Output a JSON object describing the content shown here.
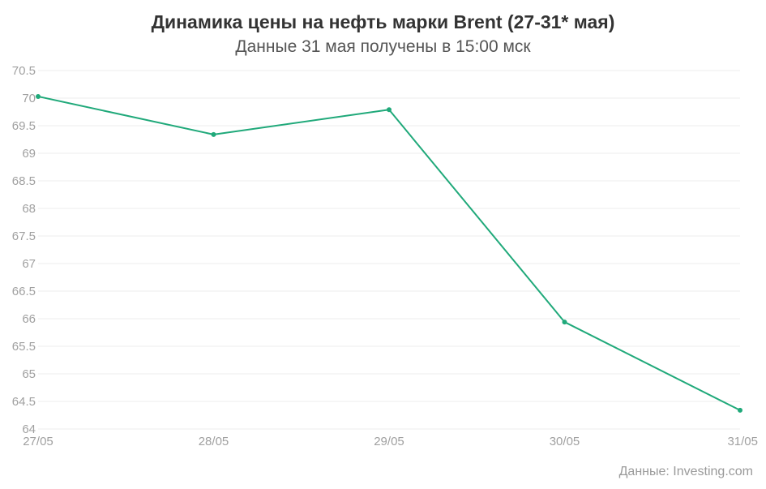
{
  "chart_data": {
    "type": "line",
    "title": "Динамика цены на нефть марки Brent (27-31* мая)",
    "subtitle": "Данные 31 мая получены в 15:00 мск",
    "categories": [
      "27/05",
      "28/05",
      "29/05",
      "30/05",
      "31/05"
    ],
    "series": [
      {
        "values": [
          70.03,
          69.34,
          69.79,
          65.94,
          64.34
        ],
        "color": "#20a97a"
      }
    ],
    "ylim": [
      64,
      70.5
    ],
    "yticks": [
      70.5,
      70,
      69.5,
      69,
      68.5,
      68,
      67.5,
      67,
      66.5,
      66,
      65.5,
      65,
      64.5,
      64
    ],
    "ytick_labels": [
      "70.5",
      "70",
      "69.5",
      "69",
      "68.5",
      "68",
      "67.5",
      "67",
      "66.5",
      "66",
      "65.5",
      "65",
      "64.5",
      "64"
    ],
    "grid": true,
    "source": "Данные: Investing.com",
    "grid_color": "#ececec",
    "axis_text_color": "#a0a0a0"
  }
}
